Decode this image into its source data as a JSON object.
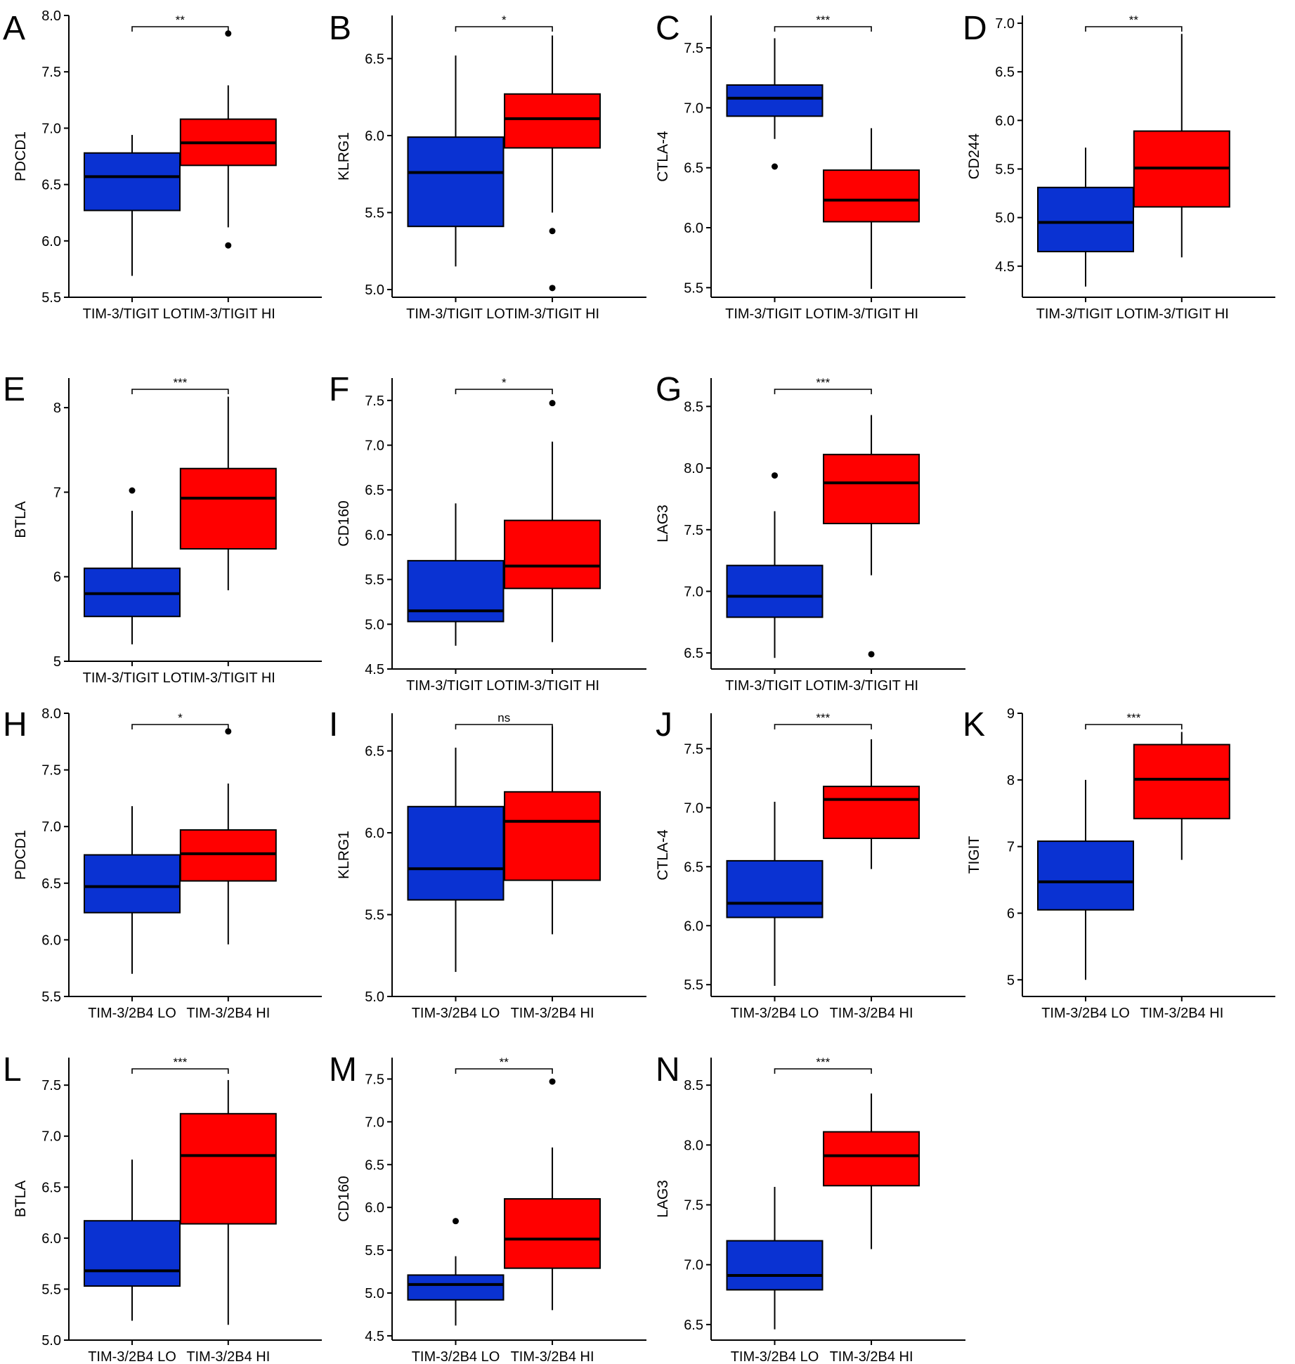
{
  "colors": {
    "lo": "#0a32d2",
    "hi": "#ff0000",
    "stroke": "#000000"
  },
  "chart_data": [
    {
      "panel": "A",
      "type": "box",
      "ylabel": "PDCD1",
      "yticks": [
        "5.5",
        "6.0",
        "6.5",
        "7.0",
        "7.5",
        "8.0"
      ],
      "ylim": [
        5.5,
        8.0
      ],
      "categories": [
        "TIM-3/TIGIT LO",
        "TIM-3/TIGIT HI"
      ],
      "boxes": [
        {
          "q1": 6.27,
          "median": 6.57,
          "q3": 6.78,
          "whisker_low": 5.69,
          "whisker_high": 6.94,
          "outliers": []
        },
        {
          "q1": 6.67,
          "median": 6.87,
          "q3": 7.08,
          "whisker_low": 6.12,
          "whisker_high": 7.38,
          "outliers": [
            7.84,
            5.96
          ]
        }
      ],
      "significance": "**"
    },
    {
      "panel": "B",
      "type": "box",
      "ylabel": "KLRG1",
      "yticks": [
        "5.0",
        "5.5",
        "6.0",
        "6.5"
      ],
      "ylim": [
        4.95,
        6.78
      ],
      "categories": [
        "TIM-3/TIGIT LO",
        "TIM-3/TIGIT HI"
      ],
      "boxes": [
        {
          "q1": 5.41,
          "median": 5.76,
          "q3": 5.99,
          "whisker_low": 5.15,
          "whisker_high": 6.52,
          "outliers": []
        },
        {
          "q1": 5.92,
          "median": 6.11,
          "q3": 6.27,
          "whisker_low": 5.5,
          "whisker_high": 6.65,
          "outliers": [
            5.38,
            5.01
          ]
        }
      ],
      "significance": "*"
    },
    {
      "panel": "C",
      "type": "box",
      "ylabel": "CTLA-4",
      "yticks": [
        "5.5",
        "6.0",
        "6.5",
        "7.0",
        "7.5"
      ],
      "ylim": [
        5.42,
        7.77
      ],
      "categories": [
        "TIM-3/TIGIT LO",
        "TIM-3/TIGIT HI"
      ],
      "boxes": [
        {
          "q1": 6.93,
          "median": 7.08,
          "q3": 7.19,
          "whisker_low": 6.74,
          "whisker_high": 7.58,
          "outliers": [
            6.51
          ]
        },
        {
          "q1": 6.05,
          "median": 6.23,
          "q3": 6.48,
          "whisker_low": 5.49,
          "whisker_high": 6.83,
          "outliers": []
        }
      ],
      "significance": "***"
    },
    {
      "panel": "D",
      "type": "box",
      "ylabel": "CD244",
      "yticks": [
        "4.5",
        "5.0",
        "5.5",
        "6.0",
        "6.5",
        "7.0"
      ],
      "ylim": [
        4.18,
        7.08
      ],
      "categories": [
        "TIM-3/TIGIT LO",
        "TIM-3/TIGIT HI"
      ],
      "boxes": [
        {
          "q1": 4.65,
          "median": 4.95,
          "q3": 5.31,
          "whisker_low": 4.29,
          "whisker_high": 5.72,
          "outliers": []
        },
        {
          "q1": 5.11,
          "median": 5.51,
          "q3": 5.89,
          "whisker_low": 4.59,
          "whisker_high": 6.89,
          "outliers": []
        }
      ],
      "significance": "**"
    },
    {
      "panel": "E",
      "type": "box",
      "ylabel": "BTLA",
      "yticks": [
        "5",
        "6",
        "7",
        "8"
      ],
      "ylim": [
        5.0,
        8.35
      ],
      "categories": [
        "TIM-3/TIGIT LO",
        "TIM-3/TIGIT HI"
      ],
      "boxes": [
        {
          "q1": 5.53,
          "median": 5.8,
          "q3": 6.1,
          "whisker_low": 5.2,
          "whisker_high": 6.78,
          "outliers": [
            7.02
          ]
        },
        {
          "q1": 6.33,
          "median": 6.93,
          "q3": 7.28,
          "whisker_low": 5.84,
          "whisker_high": 8.13,
          "outliers": []
        }
      ],
      "significance": "***"
    },
    {
      "panel": "F",
      "type": "box",
      "ylabel": "CD160",
      "yticks": [
        "4.5",
        "5.0",
        "5.5",
        "6.0",
        "6.5",
        "7.0",
        "7.5"
      ],
      "ylim": [
        4.5,
        7.75
      ],
      "categories": [
        "TIM-3/TIGIT LO",
        "TIM-3/TIGIT HI"
      ],
      "boxes": [
        {
          "q1": 5.03,
          "median": 5.15,
          "q3": 5.71,
          "whisker_low": 4.76,
          "whisker_high": 6.35,
          "outliers": []
        },
        {
          "q1": 5.4,
          "median": 5.65,
          "q3": 6.16,
          "whisker_low": 4.8,
          "whisker_high": 7.04,
          "outliers": [
            7.47
          ]
        }
      ],
      "significance": "*"
    },
    {
      "panel": "G",
      "type": "box",
      "ylabel": "LAG3",
      "yticks": [
        "6.5",
        "7.0",
        "7.5",
        "8.0",
        "8.5"
      ],
      "ylim": [
        6.37,
        8.73
      ],
      "categories": [
        "TIM-3/TIGIT LO",
        "TIM-3/TIGIT HI"
      ],
      "boxes": [
        {
          "q1": 6.79,
          "median": 6.96,
          "q3": 7.21,
          "whisker_low": 6.46,
          "whisker_high": 7.65,
          "outliers": [
            7.94
          ]
        },
        {
          "q1": 7.55,
          "median": 7.88,
          "q3": 8.11,
          "whisker_low": 7.13,
          "whisker_high": 8.43,
          "outliers": [
            6.49
          ]
        }
      ],
      "significance": "***"
    },
    {
      "panel": "H",
      "type": "box",
      "ylabel": "PDCD1",
      "yticks": [
        "5.5",
        "6.0",
        "6.5",
        "7.0",
        "7.5",
        "8.0"
      ],
      "ylim": [
        5.5,
        8.0
      ],
      "categories": [
        "TIM-3/2B4 LO",
        "TIM-3/2B4 HI"
      ],
      "boxes": [
        {
          "q1": 6.24,
          "median": 6.47,
          "q3": 6.75,
          "whisker_low": 5.7,
          "whisker_high": 7.18,
          "outliers": []
        },
        {
          "q1": 6.52,
          "median": 6.76,
          "q3": 6.97,
          "whisker_low": 5.96,
          "whisker_high": 7.38,
          "outliers": [
            7.84
          ]
        }
      ],
      "significance": "*"
    },
    {
      "panel": "I",
      "type": "box",
      "ylabel": "KLRG1",
      "yticks": [
        "5.0",
        "5.5",
        "6.0",
        "6.5"
      ],
      "ylim": [
        5.0,
        6.73
      ],
      "categories": [
        "TIM-3/2B4 LO",
        "TIM-3/2B4 HI"
      ],
      "boxes": [
        {
          "q1": 5.59,
          "median": 5.78,
          "q3": 6.16,
          "whisker_low": 5.15,
          "whisker_high": 6.52,
          "outliers": []
        },
        {
          "q1": 5.71,
          "median": 6.07,
          "q3": 6.25,
          "whisker_low": 5.38,
          "whisker_high": 6.65,
          "outliers": []
        }
      ],
      "significance": "ns"
    },
    {
      "panel": "J",
      "type": "box",
      "ylabel": "CTLA-4",
      "yticks": [
        "5.5",
        "6.0",
        "6.5",
        "7.0",
        "7.5"
      ],
      "ylim": [
        5.4,
        7.8
      ],
      "categories": [
        "TIM-3/2B4 LO",
        "TIM-3/2B4 HI"
      ],
      "boxes": [
        {
          "q1": 6.07,
          "median": 6.19,
          "q3": 6.55,
          "whisker_low": 5.49,
          "whisker_high": 7.05,
          "outliers": []
        },
        {
          "q1": 6.74,
          "median": 7.07,
          "q3": 7.18,
          "whisker_low": 6.48,
          "whisker_high": 7.58,
          "outliers": []
        }
      ],
      "significance": "***"
    },
    {
      "panel": "K",
      "type": "box",
      "ylabel": "TIGIT",
      "yticks": [
        "5",
        "6",
        "7",
        "8",
        "9"
      ],
      "ylim": [
        4.75,
        9.0
      ],
      "categories": [
        "TIM-3/2B4 LO",
        "TIM-3/2B4 HI"
      ],
      "boxes": [
        {
          "q1": 6.05,
          "median": 6.47,
          "q3": 7.08,
          "whisker_low": 5.0,
          "whisker_high": 8.0,
          "outliers": []
        },
        {
          "q1": 7.42,
          "median": 8.01,
          "q3": 8.53,
          "whisker_low": 6.8,
          "whisker_high": 8.72,
          "outliers": []
        }
      ],
      "significance": "***"
    },
    {
      "panel": "L",
      "type": "box",
      "ylabel": "BTLA",
      "yticks": [
        "5.0",
        "5.5",
        "6.0",
        "6.5",
        "7.0",
        "7.5"
      ],
      "ylim": [
        5.0,
        7.77
      ],
      "categories": [
        "TIM-3/2B4 LO",
        "TIM-3/2B4 HI"
      ],
      "boxes": [
        {
          "q1": 5.53,
          "median": 5.68,
          "q3": 6.17,
          "whisker_low": 5.19,
          "whisker_high": 6.77,
          "outliers": []
        },
        {
          "q1": 6.14,
          "median": 6.81,
          "q3": 7.22,
          "whisker_low": 5.15,
          "whisker_high": 7.55,
          "outliers": []
        }
      ],
      "significance": "***"
    },
    {
      "panel": "M",
      "type": "box",
      "ylabel": "CD160",
      "yticks": [
        "4.5",
        "5.0",
        "5.5",
        "6.0",
        "6.5",
        "7.0",
        "7.5"
      ],
      "ylim": [
        4.45,
        7.75
      ],
      "categories": [
        "TIM-3/2B4 LO",
        "TIM-3/2B4 HI"
      ],
      "boxes": [
        {
          "q1": 4.92,
          "median": 5.1,
          "q3": 5.21,
          "whisker_low": 4.62,
          "whisker_high": 5.43,
          "outliers": [
            5.84
          ]
        },
        {
          "q1": 5.29,
          "median": 5.63,
          "q3": 6.1,
          "whisker_low": 4.8,
          "whisker_high": 6.7,
          "outliers": [
            7.47
          ]
        }
      ],
      "significance": "**"
    },
    {
      "panel": "N",
      "type": "box",
      "ylabel": "LAG3",
      "yticks": [
        "6.5",
        "7.0",
        "7.5",
        "8.0",
        "8.5"
      ],
      "ylim": [
        6.37,
        8.73
      ],
      "categories": [
        "TIM-3/2B4 LO",
        "TIM-3/2B4 HI"
      ],
      "boxes": [
        {
          "q1": 6.79,
          "median": 6.91,
          "q3": 7.2,
          "whisker_low": 6.46,
          "whisker_high": 7.65,
          "outliers": []
        },
        {
          "q1": 7.66,
          "median": 7.91,
          "q3": 8.11,
          "whisker_low": 7.13,
          "whisker_high": 8.43,
          "outliers": []
        }
      ],
      "significance": "***"
    }
  ]
}
